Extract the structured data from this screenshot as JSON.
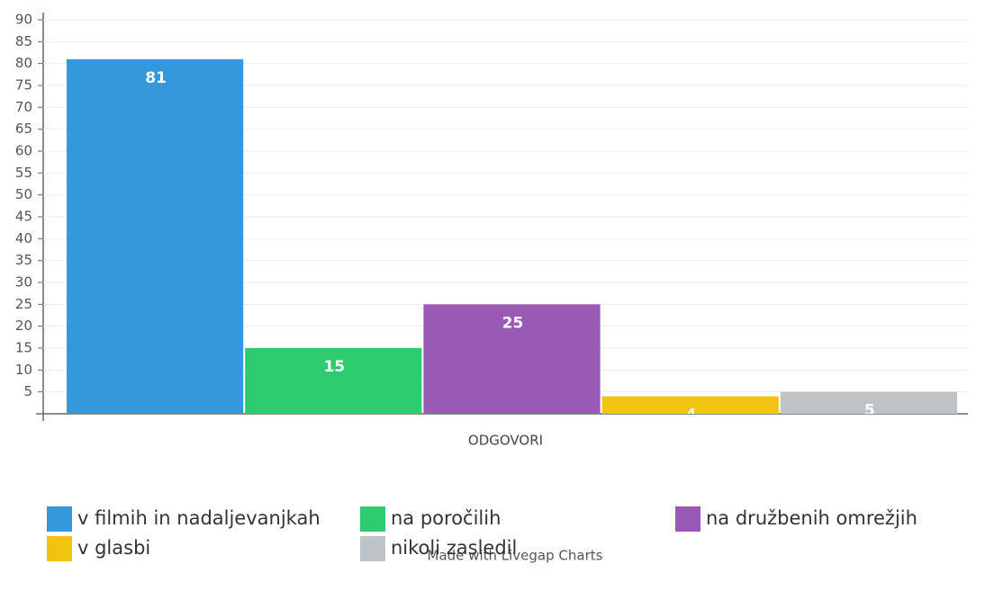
{
  "chart_data": {
    "type": "bar",
    "categories": [
      "ODGOVORI"
    ],
    "series": [
      {
        "name": "v filmih in nadaljevanjkah",
        "color": "#3498db",
        "values": [
          81
        ]
      },
      {
        "name": "na poročilih",
        "color": "#2ecc71",
        "values": [
          15
        ]
      },
      {
        "name": "na družbenih omrežjih",
        "color": "#9b59b6",
        "values": [
          25
        ]
      },
      {
        "name": "v glasbi",
        "color": "#f1c40f",
        "values": [
          4
        ]
      },
      {
        "name": "nikoli zasledil",
        "color": "#bdc3c7",
        "values": [
          5
        ]
      }
    ],
    "ylim": [
      0,
      90
    ],
    "yticks": [
      5,
      10,
      15,
      20,
      25,
      30,
      35,
      40,
      45,
      50,
      55,
      60,
      65,
      70,
      75,
      80,
      85,
      90
    ],
    "grid": true,
    "legend": "bottom",
    "credit": "Made with Livegap Charts"
  }
}
